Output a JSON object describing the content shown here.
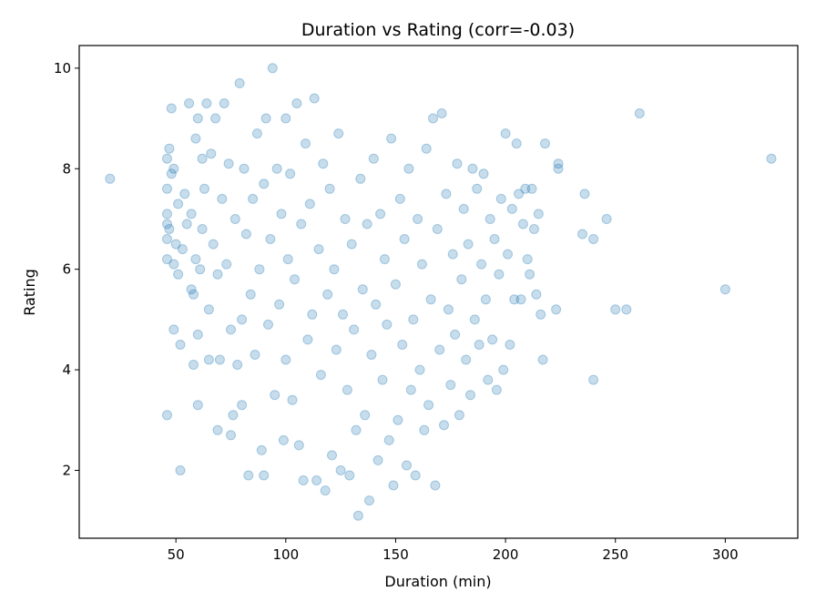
{
  "chart_data": {
    "type": "scatter",
    "title": "Duration vs Rating (corr=-0.03)",
    "xlabel": "Duration (min)",
    "ylabel": "Rating",
    "xlim": [
      6,
      333
    ],
    "ylim": [
      0.65,
      10.45
    ],
    "xticks": [
      50,
      100,
      150,
      200,
      250,
      300
    ],
    "yticks": [
      2,
      4,
      6,
      8,
      10
    ],
    "grid": false,
    "legend": "none",
    "marker_color": "#1f77b4",
    "marker_alpha": 0.25,
    "series": [
      {
        "points": [
          [
            20,
            7.8
          ],
          [
            46,
            3.1
          ],
          [
            46,
            8.2
          ],
          [
            46,
            7.6
          ],
          [
            46,
            7.1
          ],
          [
            46,
            6.9
          ],
          [
            46,
            6.6
          ],
          [
            46,
            6.2
          ],
          [
            47,
            8.4
          ],
          [
            47,
            6.8
          ],
          [
            48,
            9.2
          ],
          [
            48,
            7.9
          ],
          [
            49,
            4.8
          ],
          [
            49,
            8.0
          ],
          [
            49,
            6.1
          ],
          [
            50,
            6.5
          ],
          [
            51,
            7.3
          ],
          [
            51,
            5.9
          ],
          [
            52,
            4.5
          ],
          [
            52,
            2.0
          ],
          [
            53,
            6.4
          ],
          [
            54,
            7.5
          ],
          [
            55,
            6.9
          ],
          [
            56,
            9.3
          ],
          [
            57,
            5.6
          ],
          [
            57,
            7.1
          ],
          [
            58,
            4.1
          ],
          [
            58,
            5.5
          ],
          [
            59,
            8.6
          ],
          [
            59,
            6.2
          ],
          [
            60,
            3.3
          ],
          [
            60,
            9.0
          ],
          [
            60,
            4.7
          ],
          [
            61,
            6.0
          ],
          [
            62,
            8.2
          ],
          [
            62,
            6.8
          ],
          [
            63,
            7.6
          ],
          [
            64,
            9.3
          ],
          [
            65,
            4.2
          ],
          [
            65,
            5.2
          ],
          [
            66,
            8.3
          ],
          [
            67,
            6.5
          ],
          [
            68,
            9.0
          ],
          [
            69,
            2.8
          ],
          [
            69,
            5.9
          ],
          [
            70,
            4.2
          ],
          [
            71,
            7.4
          ],
          [
            72,
            9.3
          ],
          [
            73,
            6.1
          ],
          [
            74,
            8.1
          ],
          [
            75,
            2.7
          ],
          [
            75,
            4.8
          ],
          [
            76,
            3.1
          ],
          [
            77,
            7.0
          ],
          [
            78,
            4.1
          ],
          [
            79,
            9.7
          ],
          [
            80,
            5.0
          ],
          [
            80,
            3.3
          ],
          [
            81,
            8.0
          ],
          [
            82,
            6.7
          ],
          [
            83,
            1.9
          ],
          [
            84,
            5.5
          ],
          [
            85,
            7.4
          ],
          [
            86,
            4.3
          ],
          [
            87,
            8.7
          ],
          [
            88,
            6.0
          ],
          [
            89,
            2.4
          ],
          [
            90,
            1.9
          ],
          [
            90,
            7.7
          ],
          [
            91,
            9.0
          ],
          [
            92,
            4.9
          ],
          [
            93,
            6.6
          ],
          [
            94,
            10.0
          ],
          [
            95,
            3.5
          ],
          [
            96,
            8.0
          ],
          [
            97,
            5.3
          ],
          [
            98,
            7.1
          ],
          [
            99,
            2.6
          ],
          [
            100,
            9.0
          ],
          [
            100,
            4.2
          ],
          [
            101,
            6.2
          ],
          [
            102,
            7.9
          ],
          [
            103,
            3.4
          ],
          [
            104,
            5.8
          ],
          [
            105,
            9.3
          ],
          [
            106,
            2.5
          ],
          [
            107,
            6.9
          ],
          [
            108,
            1.8
          ],
          [
            109,
            8.5
          ],
          [
            110,
            4.6
          ],
          [
            111,
            7.3
          ],
          [
            112,
            5.1
          ],
          [
            113,
            9.4
          ],
          [
            114,
            1.8
          ],
          [
            115,
            6.4
          ],
          [
            116,
            3.9
          ],
          [
            117,
            8.1
          ],
          [
            118,
            1.6
          ],
          [
            119,
            5.5
          ],
          [
            120,
            7.6
          ],
          [
            121,
            2.3
          ],
          [
            122,
            6.0
          ],
          [
            123,
            4.4
          ],
          [
            124,
            8.7
          ],
          [
            125,
            2.0
          ],
          [
            126,
            5.1
          ],
          [
            127,
            7.0
          ],
          [
            128,
            3.6
          ],
          [
            129,
            1.9
          ],
          [
            130,
            6.5
          ],
          [
            131,
            4.8
          ],
          [
            132,
            2.8
          ],
          [
            133,
            1.1
          ],
          [
            134,
            7.8
          ],
          [
            135,
            5.6
          ],
          [
            136,
            3.1
          ],
          [
            137,
            6.9
          ],
          [
            138,
            1.4
          ],
          [
            139,
            4.3
          ],
          [
            140,
            8.2
          ],
          [
            141,
            5.3
          ],
          [
            142,
            2.2
          ],
          [
            143,
            7.1
          ],
          [
            144,
            3.8
          ],
          [
            145,
            6.2
          ],
          [
            146,
            4.9
          ],
          [
            147,
            2.6
          ],
          [
            148,
            8.6
          ],
          [
            149,
            1.7
          ],
          [
            150,
            5.7
          ],
          [
            151,
            3.0
          ],
          [
            152,
            7.4
          ],
          [
            153,
            4.5
          ],
          [
            154,
            6.6
          ],
          [
            155,
            2.1
          ],
          [
            156,
            8.0
          ],
          [
            157,
            3.6
          ],
          [
            158,
            5.0
          ],
          [
            159,
            1.9
          ],
          [
            160,
            7.0
          ],
          [
            161,
            4.0
          ],
          [
            162,
            6.1
          ],
          [
            163,
            2.8
          ],
          [
            164,
            8.4
          ],
          [
            165,
            3.3
          ],
          [
            166,
            5.4
          ],
          [
            167,
            9.0
          ],
          [
            168,
            1.7
          ],
          [
            169,
            6.8
          ],
          [
            170,
            4.4
          ],
          [
            171,
            9.1
          ],
          [
            172,
            2.9
          ],
          [
            173,
            7.5
          ],
          [
            174,
            5.2
          ],
          [
            175,
            3.7
          ],
          [
            176,
            6.3
          ],
          [
            177,
            4.7
          ],
          [
            178,
            8.1
          ],
          [
            179,
            3.1
          ],
          [
            180,
            5.8
          ],
          [
            181,
            7.2
          ],
          [
            182,
            4.2
          ],
          [
            183,
            6.5
          ],
          [
            184,
            3.5
          ],
          [
            185,
            8.0
          ],
          [
            186,
            5.0
          ],
          [
            187,
            7.6
          ],
          [
            188,
            4.5
          ],
          [
            189,
            6.1
          ],
          [
            190,
            7.9
          ],
          [
            191,
            5.4
          ],
          [
            192,
            3.8
          ],
          [
            193,
            7.0
          ],
          [
            194,
            4.6
          ],
          [
            195,
            6.6
          ],
          [
            196,
            3.6
          ],
          [
            197,
            5.9
          ],
          [
            198,
            7.4
          ],
          [
            199,
            4.0
          ],
          [
            200,
            8.7
          ],
          [
            201,
            6.3
          ],
          [
            202,
            4.5
          ],
          [
            203,
            7.2
          ],
          [
            204,
            5.4
          ],
          [
            205,
            8.5
          ],
          [
            206,
            7.5
          ],
          [
            207,
            5.4
          ],
          [
            208,
            6.9
          ],
          [
            209,
            7.6
          ],
          [
            210,
            6.2
          ],
          [
            211,
            5.9
          ],
          [
            212,
            7.6
          ],
          [
            213,
            6.8
          ],
          [
            214,
            5.5
          ],
          [
            215,
            7.1
          ],
          [
            216,
            5.1
          ],
          [
            217,
            4.2
          ],
          [
            218,
            8.5
          ],
          [
            223,
            5.2
          ],
          [
            224,
            8.1
          ],
          [
            224,
            8.0
          ],
          [
            236,
            7.5
          ],
          [
            235,
            6.7
          ],
          [
            240,
            6.6
          ],
          [
            240,
            3.8
          ],
          [
            246,
            7.0
          ],
          [
            250,
            5.2
          ],
          [
            255,
            5.2
          ],
          [
            261,
            9.1
          ],
          [
            300,
            5.6
          ],
          [
            321,
            8.2
          ]
        ]
      }
    ]
  }
}
